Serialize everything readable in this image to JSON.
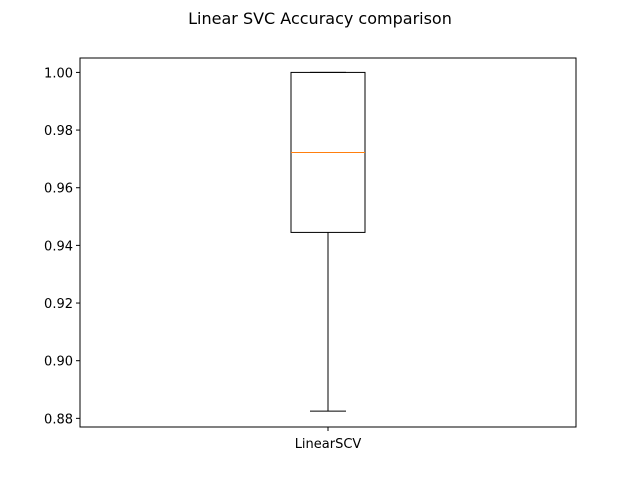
{
  "chart_data": {
    "type": "box",
    "title": "Linear SVC Accuracy comparison",
    "categories": [
      "LinearSCV"
    ],
    "boxes": [
      {
        "name": "LinearSCV",
        "whisker_low": 0.8825,
        "q1": 0.9445,
        "median": 0.9722,
        "q3": 1.0,
        "whisker_high": 1.0
      }
    ],
    "ylim": [
      0.877,
      1.005
    ],
    "yticks": [
      0.88,
      0.9,
      0.92,
      0.94,
      0.96,
      0.98,
      1.0
    ],
    "ytick_labels": [
      "0.88",
      "0.90",
      "0.92",
      "0.94",
      "0.96",
      "0.98",
      "1.00"
    ],
    "xlabel": "",
    "ylabel": "",
    "grid": false,
    "colors": {
      "box": "#000000",
      "median": "#ff7f0e",
      "whisker": "#000000"
    }
  }
}
